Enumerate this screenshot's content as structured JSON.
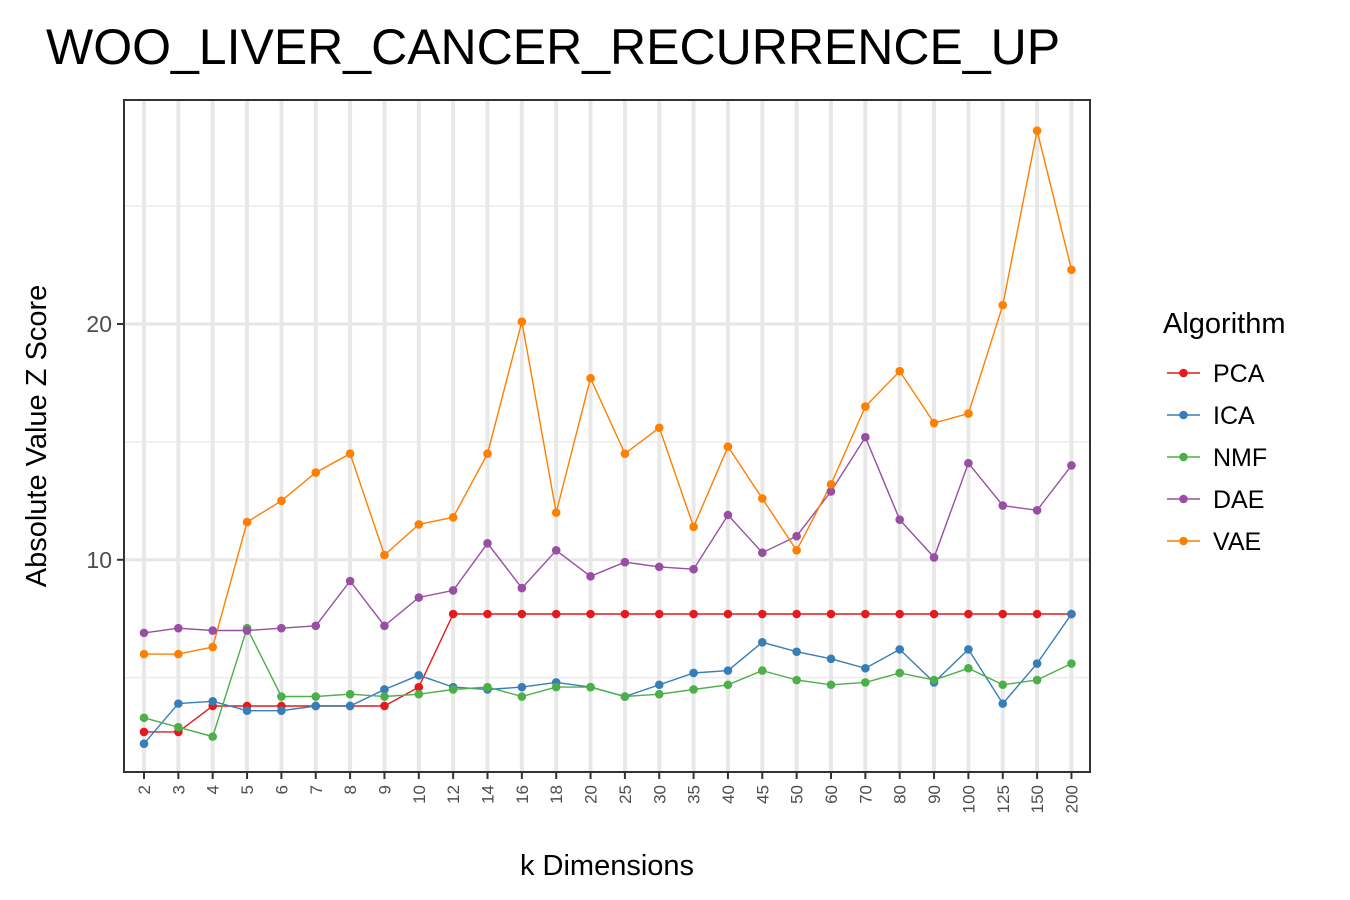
{
  "chart_data": {
    "type": "line",
    "title": "WOO_LIVER_CANCER_RECURRENCE_UP",
    "xlabel": "k Dimensions",
    "ylabel": "Absolute Value Z Score",
    "categories": [
      "2",
      "3",
      "4",
      "5",
      "6",
      "7",
      "8",
      "9",
      "10",
      "12",
      "14",
      "16",
      "18",
      "20",
      "25",
      "30",
      "35",
      "40",
      "45",
      "50",
      "60",
      "70",
      "80",
      "90",
      "100",
      "125",
      "150",
      "200"
    ],
    "y_ticks": [
      10,
      20
    ],
    "ylim": [
      1.0,
      29.5
    ],
    "grid": true,
    "legend_title": "Algorithm",
    "legend_position": "right",
    "series": [
      {
        "name": "PCA",
        "color": "#e41a1c",
        "values": [
          2.7,
          2.7,
          3.8,
          3.8,
          3.8,
          3.8,
          3.8,
          3.8,
          4.6,
          7.7,
          7.7,
          7.7,
          7.7,
          7.7,
          7.7,
          7.7,
          7.7,
          7.7,
          7.7,
          7.7,
          7.7,
          7.7,
          7.7,
          7.7,
          7.7,
          7.7,
          7.7,
          7.7
        ]
      },
      {
        "name": "ICA",
        "color": "#377eb8",
        "values": [
          2.2,
          3.9,
          4.0,
          3.6,
          3.6,
          3.8,
          3.8,
          4.5,
          5.1,
          4.6,
          4.5,
          4.6,
          4.8,
          4.6,
          4.2,
          4.7,
          5.2,
          5.3,
          6.5,
          6.1,
          5.8,
          5.4,
          6.2,
          4.8,
          6.2,
          3.9,
          5.6,
          7.7
        ]
      },
      {
        "name": "NMF",
        "color": "#4daf4a",
        "values": [
          3.3,
          2.9,
          2.5,
          7.1,
          4.2,
          4.2,
          4.3,
          4.2,
          4.3,
          4.5,
          4.6,
          4.2,
          4.6,
          4.6,
          4.2,
          4.3,
          4.5,
          4.7,
          5.3,
          4.9,
          4.7,
          4.8,
          5.2,
          4.9,
          5.4,
          4.7,
          4.9,
          5.6
        ]
      },
      {
        "name": "DAE",
        "color": "#984ea3",
        "values": [
          6.9,
          7.1,
          7.0,
          7.0,
          7.1,
          7.2,
          9.1,
          7.2,
          8.4,
          8.7,
          10.7,
          8.8,
          10.4,
          9.3,
          9.9,
          9.7,
          9.6,
          11.9,
          10.3,
          11.0,
          12.9,
          15.2,
          11.7,
          10.1,
          14.1,
          12.3,
          12.1,
          14.0
        ]
      },
      {
        "name": "VAE",
        "color": "#ff7f00",
        "values": [
          6.0,
          6.0,
          6.3,
          11.6,
          12.5,
          13.7,
          14.5,
          10.2,
          11.5,
          11.8,
          14.5,
          20.1,
          12.0,
          17.7,
          14.5,
          15.6,
          11.4,
          14.8,
          12.6,
          10.4,
          13.2,
          16.5,
          18.0,
          15.8,
          16.2,
          20.8,
          28.2,
          22.3
        ]
      }
    ]
  }
}
